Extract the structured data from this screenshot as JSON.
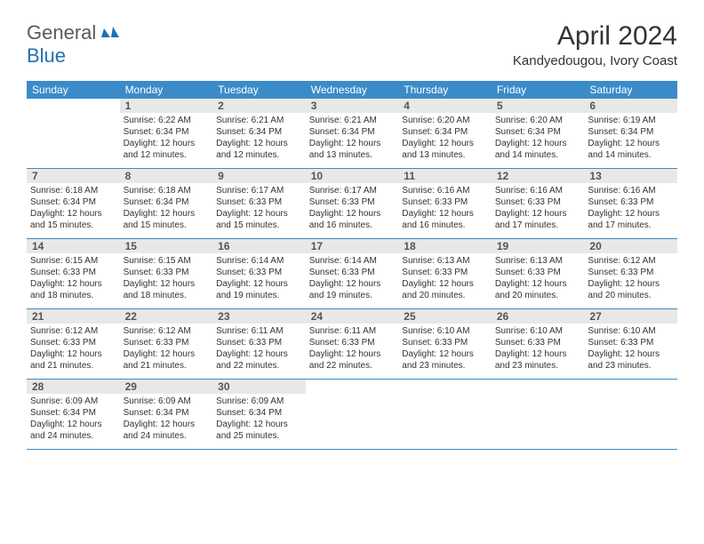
{
  "brand": {
    "word1": "General",
    "word2": "Blue"
  },
  "title": "April 2024",
  "location": "Kandyedougou, Ivory Coast",
  "colors": {
    "header_bg": "#3b8bc8",
    "header_text": "#ffffff",
    "daynum_bg": "#e8e8e8",
    "text": "#333333",
    "row_border": "#3b8bc8"
  },
  "weekdays": [
    "Sunday",
    "Monday",
    "Tuesday",
    "Wednesday",
    "Thursday",
    "Friday",
    "Saturday"
  ],
  "weeks": [
    [
      null,
      {
        "n": "1",
        "sr": "6:22 AM",
        "ss": "6:34 PM",
        "dl": "12 hours and 12 minutes."
      },
      {
        "n": "2",
        "sr": "6:21 AM",
        "ss": "6:34 PM",
        "dl": "12 hours and 12 minutes."
      },
      {
        "n": "3",
        "sr": "6:21 AM",
        "ss": "6:34 PM",
        "dl": "12 hours and 13 minutes."
      },
      {
        "n": "4",
        "sr": "6:20 AM",
        "ss": "6:34 PM",
        "dl": "12 hours and 13 minutes."
      },
      {
        "n": "5",
        "sr": "6:20 AM",
        "ss": "6:34 PM",
        "dl": "12 hours and 14 minutes."
      },
      {
        "n": "6",
        "sr": "6:19 AM",
        "ss": "6:34 PM",
        "dl": "12 hours and 14 minutes."
      }
    ],
    [
      {
        "n": "7",
        "sr": "6:18 AM",
        "ss": "6:34 PM",
        "dl": "12 hours and 15 minutes."
      },
      {
        "n": "8",
        "sr": "6:18 AM",
        "ss": "6:34 PM",
        "dl": "12 hours and 15 minutes."
      },
      {
        "n": "9",
        "sr": "6:17 AM",
        "ss": "6:33 PM",
        "dl": "12 hours and 15 minutes."
      },
      {
        "n": "10",
        "sr": "6:17 AM",
        "ss": "6:33 PM",
        "dl": "12 hours and 16 minutes."
      },
      {
        "n": "11",
        "sr": "6:16 AM",
        "ss": "6:33 PM",
        "dl": "12 hours and 16 minutes."
      },
      {
        "n": "12",
        "sr": "6:16 AM",
        "ss": "6:33 PM",
        "dl": "12 hours and 17 minutes."
      },
      {
        "n": "13",
        "sr": "6:16 AM",
        "ss": "6:33 PM",
        "dl": "12 hours and 17 minutes."
      }
    ],
    [
      {
        "n": "14",
        "sr": "6:15 AM",
        "ss": "6:33 PM",
        "dl": "12 hours and 18 minutes."
      },
      {
        "n": "15",
        "sr": "6:15 AM",
        "ss": "6:33 PM",
        "dl": "12 hours and 18 minutes."
      },
      {
        "n": "16",
        "sr": "6:14 AM",
        "ss": "6:33 PM",
        "dl": "12 hours and 19 minutes."
      },
      {
        "n": "17",
        "sr": "6:14 AM",
        "ss": "6:33 PM",
        "dl": "12 hours and 19 minutes."
      },
      {
        "n": "18",
        "sr": "6:13 AM",
        "ss": "6:33 PM",
        "dl": "12 hours and 20 minutes."
      },
      {
        "n": "19",
        "sr": "6:13 AM",
        "ss": "6:33 PM",
        "dl": "12 hours and 20 minutes."
      },
      {
        "n": "20",
        "sr": "6:12 AM",
        "ss": "6:33 PM",
        "dl": "12 hours and 20 minutes."
      }
    ],
    [
      {
        "n": "21",
        "sr": "6:12 AM",
        "ss": "6:33 PM",
        "dl": "12 hours and 21 minutes."
      },
      {
        "n": "22",
        "sr": "6:12 AM",
        "ss": "6:33 PM",
        "dl": "12 hours and 21 minutes."
      },
      {
        "n": "23",
        "sr": "6:11 AM",
        "ss": "6:33 PM",
        "dl": "12 hours and 22 minutes."
      },
      {
        "n": "24",
        "sr": "6:11 AM",
        "ss": "6:33 PM",
        "dl": "12 hours and 22 minutes."
      },
      {
        "n": "25",
        "sr": "6:10 AM",
        "ss": "6:33 PM",
        "dl": "12 hours and 23 minutes."
      },
      {
        "n": "26",
        "sr": "6:10 AM",
        "ss": "6:33 PM",
        "dl": "12 hours and 23 minutes."
      },
      {
        "n": "27",
        "sr": "6:10 AM",
        "ss": "6:33 PM",
        "dl": "12 hours and 23 minutes."
      }
    ],
    [
      {
        "n": "28",
        "sr": "6:09 AM",
        "ss": "6:34 PM",
        "dl": "12 hours and 24 minutes."
      },
      {
        "n": "29",
        "sr": "6:09 AM",
        "ss": "6:34 PM",
        "dl": "12 hours and 24 minutes."
      },
      {
        "n": "30",
        "sr": "6:09 AM",
        "ss": "6:34 PM",
        "dl": "12 hours and 25 minutes."
      },
      null,
      null,
      null,
      null
    ]
  ],
  "labels": {
    "sunrise": "Sunrise: ",
    "sunset": "Sunset: ",
    "daylight": "Daylight: "
  }
}
